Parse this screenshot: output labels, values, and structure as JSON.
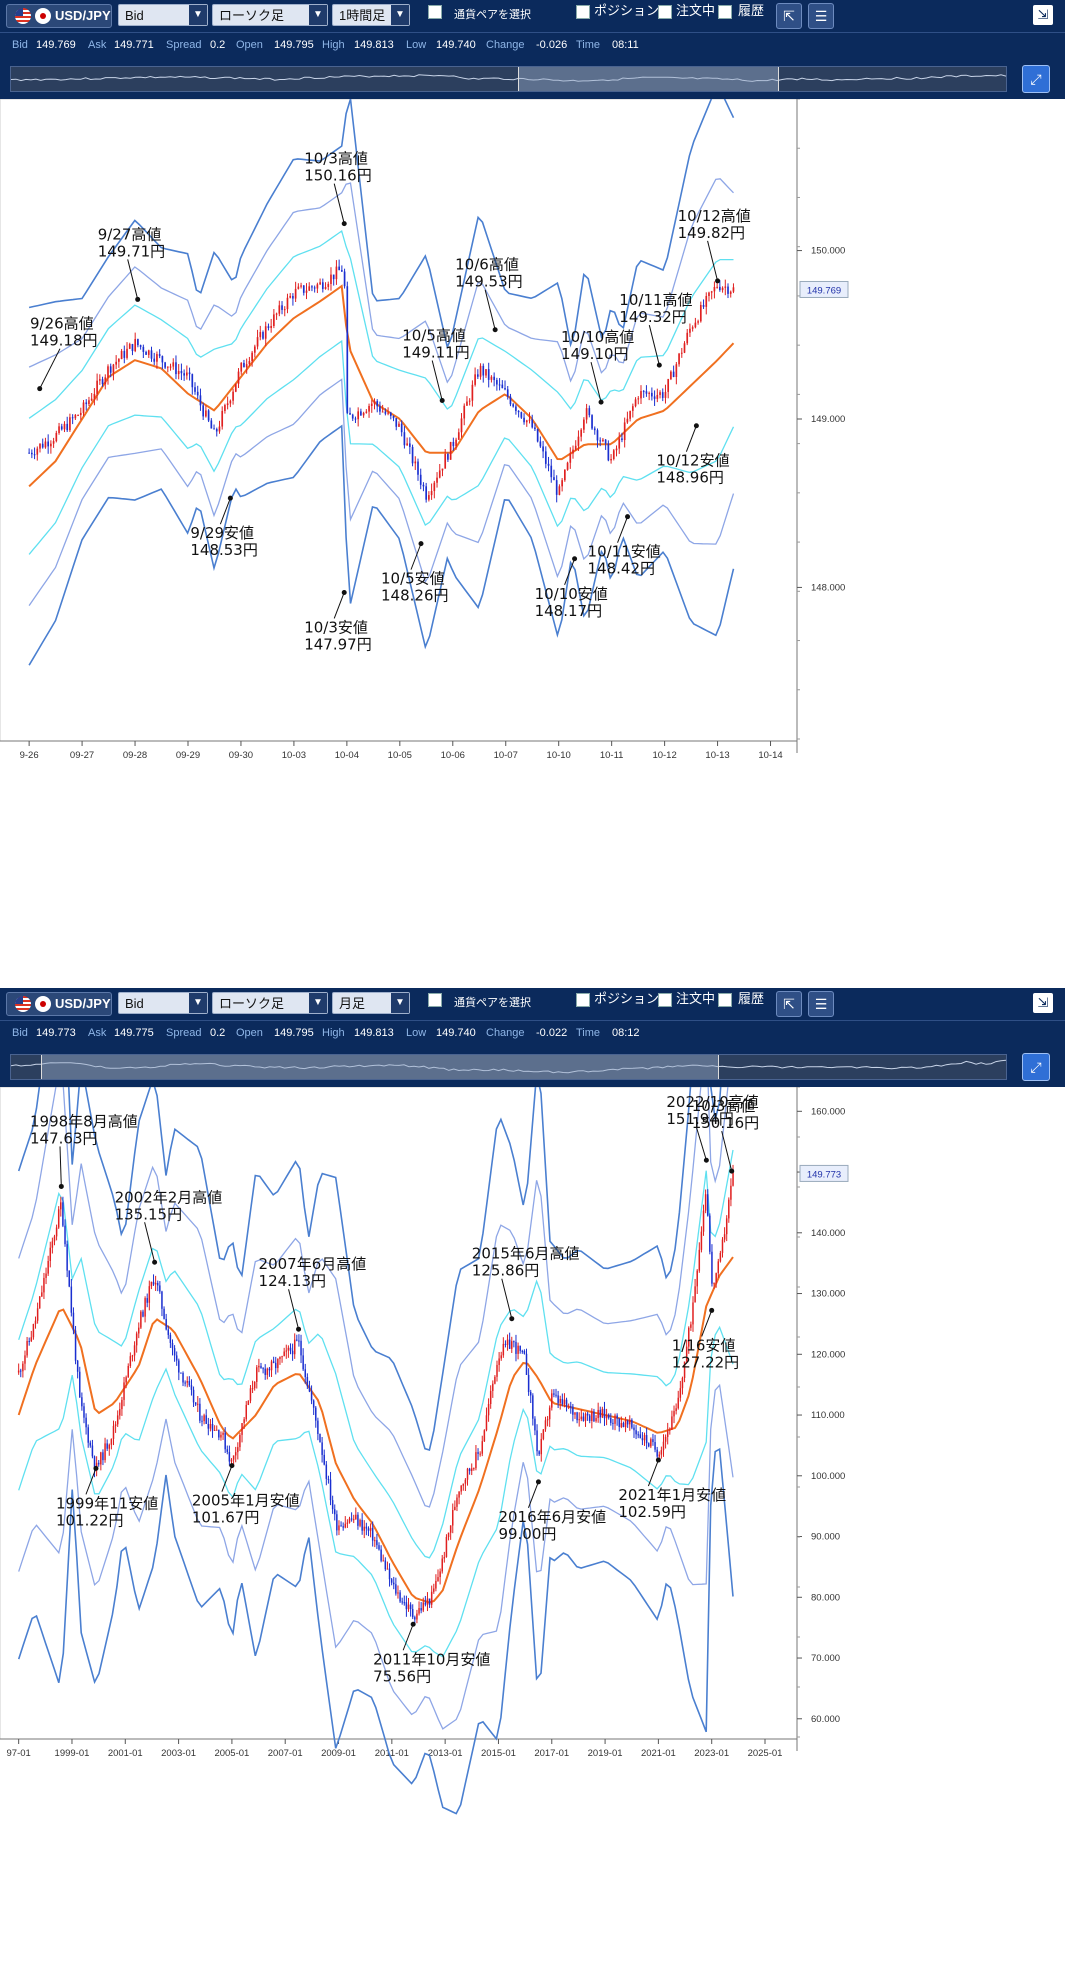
{
  "panels": [
    {
      "toolbar": {
        "pair": "USD/JPY",
        "price_type": "Bid",
        "chart_type": "ローソク足",
        "timeframe": "1時間足",
        "select_pair": "通貨ペアを選択",
        "position": "ポジション",
        "orders": "注文中",
        "history": "履歴"
      },
      "quote": {
        "bid_label": "Bid",
        "bid": "149.769",
        "ask_label": "Ask",
        "ask": "149.771",
        "spread_label": "Spread",
        "spread": "0.2",
        "open_label": "Open",
        "open": "149.795",
        "high_label": "High",
        "high": "149.813",
        "low_label": "Low",
        "low": "149.740",
        "change_label": "Change",
        "change": "-0.026",
        "time_label": "Time",
        "time": "08:11"
      },
      "navigator_selection": [
        0.51,
        0.77
      ]
    },
    {
      "toolbar": {
        "pair": "USD/JPY",
        "price_type": "Bid",
        "chart_type": "ローソク足",
        "timeframe": "月足",
        "select_pair": "通貨ペアを選択",
        "position": "ポジション",
        "orders": "注文中",
        "history": "履歴"
      },
      "quote": {
        "bid_label": "Bid",
        "bid": "149.773",
        "ask_label": "Ask",
        "ask": "149.775",
        "spread_label": "Spread",
        "spread": "0.2",
        "open_label": "Open",
        "open": "149.795",
        "high_label": "High",
        "high": "149.813",
        "low_label": "Low",
        "low": "149.740",
        "change_label": "Change",
        "change": "-0.022",
        "time_label": "Time",
        "time": "08:12"
      },
      "navigator_selection": [
        0.03,
        0.71
      ]
    }
  ],
  "chart_data": [
    {
      "type": "candlestick",
      "current_price": "149.769",
      "ylim": [
        147.1,
        150.9
      ],
      "yticks": [
        "148.000",
        "149.000",
        "150.000"
      ],
      "xticks": [
        "09-26",
        "09-27",
        "09-28",
        "09-29",
        "09-30",
        "10-03",
        "10-04",
        "10-05",
        "10-06",
        "10-07",
        "10-10",
        "10-11",
        "10-12",
        "10-13",
        "10-14"
      ],
      "xtick_first_display": "9-26",
      "series": [
        {
          "name": "close",
          "x": [
            0,
            0.5,
            1,
            1.5,
            2,
            2.5,
            3,
            3.5,
            4,
            4.5,
            5,
            5.5,
            5.95,
            6,
            6.5,
            7,
            7.5,
            8,
            8.5,
            9,
            9.5,
            10,
            10.5,
            11,
            11.5,
            12,
            12.5,
            13,
            13.3
          ],
          "y": [
            148.8,
            148.9,
            149.05,
            149.3,
            149.45,
            149.35,
            149.25,
            148.9,
            149.3,
            149.55,
            149.75,
            149.8,
            149.9,
            149.0,
            149.1,
            148.95,
            148.55,
            148.85,
            149.3,
            149.15,
            148.95,
            148.55,
            149.05,
            148.75,
            149.15,
            149.15,
            149.55,
            149.8,
            149.77
          ]
        }
      ],
      "moving_average": [
        148.6,
        148.75,
        149.0,
        149.25,
        149.35,
        149.3,
        149.15,
        149.05,
        149.25,
        149.45,
        149.6,
        149.7,
        149.8,
        149.45,
        149.1,
        149.0,
        148.8,
        148.8,
        149.05,
        149.15,
        149.0,
        148.75,
        148.85,
        148.85,
        149.0,
        149.05,
        149.2,
        149.35,
        149.45
      ],
      "band_widths": [
        0.25,
        0.4,
        0.6
      ],
      "annotations": [
        {
          "label": "9/26高値",
          "value": "149.18円",
          "x": 0.2,
          "y": 149.18
        },
        {
          "label": "9/27高値",
          "value": "149.71円",
          "x": 2.05,
          "y": 149.71
        },
        {
          "label": "9/29安値",
          "value": "148.53円",
          "x": 3.8,
          "y": 148.53
        },
        {
          "label": "10/3高値",
          "value": "150.16円",
          "x": 5.95,
          "y": 150.16
        },
        {
          "label": "10/3安値",
          "value": "147.97円",
          "x": 5.95,
          "y": 147.97
        },
        {
          "label": "10/5高値",
          "value": "149.11円",
          "x": 7.8,
          "y": 149.11
        },
        {
          "label": "10/5安値",
          "value": "148.26円",
          "x": 7.4,
          "y": 148.26
        },
        {
          "label": "10/6高値",
          "value": "149.53円",
          "x": 8.8,
          "y": 149.53
        },
        {
          "label": "10/10高値",
          "value": "149.10円",
          "x": 10.8,
          "y": 149.1
        },
        {
          "label": "10/10安値",
          "value": "148.17円",
          "x": 10.3,
          "y": 148.17
        },
        {
          "label": "10/11高値",
          "value": "149.32円",
          "x": 11.9,
          "y": 149.32
        },
        {
          "label": "10/11安値",
          "value": "148.42円",
          "x": 11.3,
          "y": 148.42
        },
        {
          "label": "10/12高値",
          "value": "149.82円",
          "x": 13.0,
          "y": 149.82
        },
        {
          "label": "10/12安値",
          "value": "148.96円",
          "x": 12.6,
          "y": 148.96
        }
      ]
    },
    {
      "type": "candlestick",
      "current_price": "149.773",
      "ylim": [
        57,
        164
      ],
      "yticks": [
        "60.000",
        "70.000",
        "80.000",
        "90.000",
        "100.000",
        "110.000",
        "120.000",
        "130.000",
        "140.000",
        "150.000",
        "160.000"
      ],
      "xticks": [
        "1997-01",
        "1999-01",
        "2001-01",
        "2003-01",
        "2005-01",
        "2007-01",
        "2009-01",
        "2011-01",
        "2013-01",
        "2015-01",
        "2017-01",
        "2019-01",
        "2021-01",
        "2023-01",
        "2025-01"
      ],
      "xtick_first_display": "97-01",
      "series": [
        {
          "name": "close",
          "x": [
            1997,
            1997.6,
            1998.6,
            1999.3,
            1999.9,
            2000.6,
            2001.5,
            2002.1,
            2002.8,
            2003.8,
            2004.6,
            2005.0,
            2005.9,
            2006.6,
            2007.5,
            2008.3,
            2008.9,
            2009.6,
            2010.3,
            2011.0,
            2011.8,
            2012.5,
            2012.9,
            2013.5,
            2014.3,
            2015.0,
            2015.5,
            2016.0,
            2016.5,
            2017.0,
            2018.0,
            2019.0,
            2020.0,
            2021.0,
            2021.7,
            2022.2,
            2022.8,
            2023.0,
            2023.3,
            2023.8
          ],
          "y": [
            117,
            125,
            145,
            112,
            101,
            108,
            125,
            133,
            120,
            110,
            107,
            102,
            117,
            118,
            122,
            106,
            92,
            93,
            90,
            82,
            77,
            80,
            86,
            98,
            104,
            120,
            122,
            119,
            103,
            113,
            110,
            110,
            108,
            104,
            111,
            125,
            148,
            131,
            135,
            149.8
          ]
        }
      ],
      "moving_average": [
        110,
        118,
        128,
        122,
        110,
        112,
        118,
        126,
        124,
        116,
        108,
        106,
        110,
        115,
        117,
        112,
        102,
        96,
        92,
        86,
        80,
        79,
        81,
        89,
        98,
        108,
        116,
        119,
        116,
        112,
        111,
        110,
        109,
        107,
        108,
        114,
        128,
        130,
        133,
        136
      ],
      "band_widths": [
        7,
        15,
        24
      ],
      "annotations": [
        {
          "label": "1998年8月高値",
          "value": "147.63円",
          "x": 1998.6,
          "y": 147.63
        },
        {
          "label": "1999年11安値",
          "value": "101.22円",
          "x": 1999.9,
          "y": 101.22
        },
        {
          "label": "2002年2月高値",
          "value": "135.15円",
          "x": 2002.1,
          "y": 135.15
        },
        {
          "label": "2005年1月安値",
          "value": "101.67円",
          "x": 2005.0,
          "y": 101.67
        },
        {
          "label": "2007年6月高値",
          "value": "124.13円",
          "x": 2007.5,
          "y": 124.13
        },
        {
          "label": "2011年10月安値",
          "value": "75.56円",
          "x": 2011.8,
          "y": 75.56
        },
        {
          "label": "2015年6月高値",
          "value": "125.86円",
          "x": 2015.5,
          "y": 125.86
        },
        {
          "label": "2016年6月安値",
          "value": "99.00円",
          "x": 2016.5,
          "y": 99.0
        },
        {
          "label": "2021年1月安値",
          "value": "102.59円",
          "x": 2021.0,
          "y": 102.59
        },
        {
          "label": "2022/10高値",
          "value": "151.94円",
          "x": 2022.8,
          "y": 151.94
        },
        {
          "label": "1/16安値",
          "value": "127.22円",
          "x": 2023.0,
          "y": 127.22
        },
        {
          "label": "10/3高値",
          "value": "150.16円",
          "x": 2023.75,
          "y": 150.16
        }
      ]
    }
  ],
  "colors": {
    "up_candle": "#e02020",
    "down_candle": "#1a2fd0",
    "moving_average": "#f07020",
    "band_inner": "#5fe0f0",
    "band_middle": "#8ea6e6",
    "band_outer": "#4a7fd0",
    "toolbar_bg": "#0b2a5c"
  }
}
